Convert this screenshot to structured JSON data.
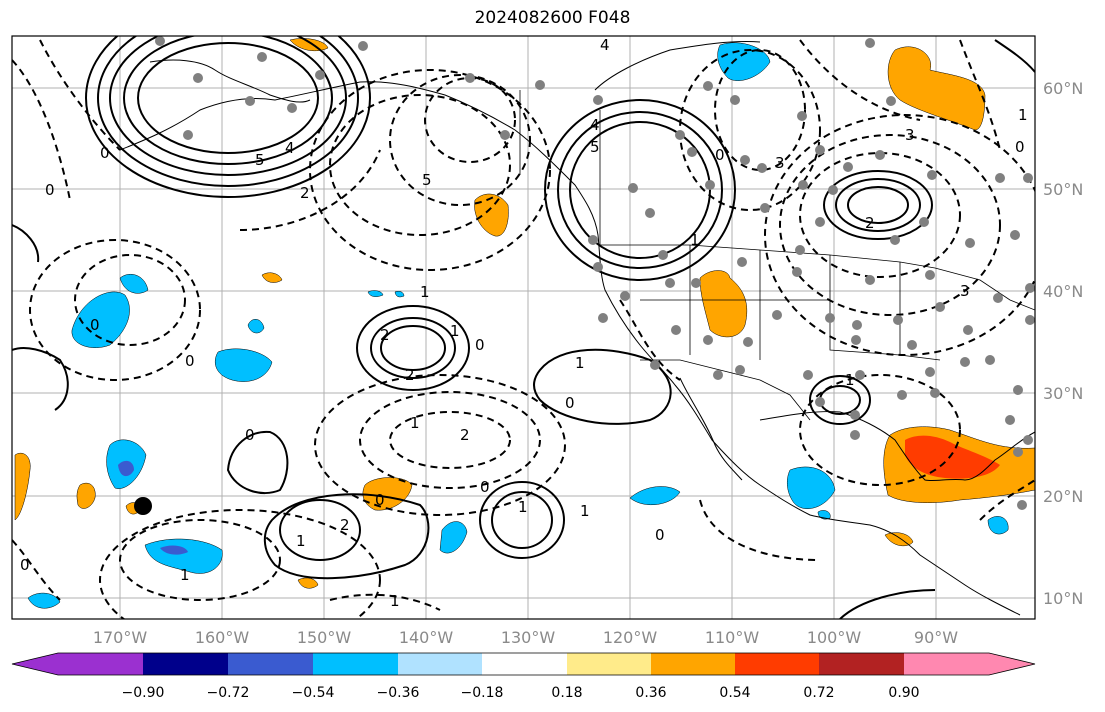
{
  "title": "2024082600 F048",
  "map": {
    "longitude_labels": [
      "170°W",
      "160°W",
      "150°W",
      "140°W",
      "130°W",
      "120°W",
      "110°W",
      "100°W",
      "90°W"
    ],
    "latitude_labels": [
      "60°N",
      "50°N",
      "40°N",
      "30°N",
      "20°N",
      "10°N"
    ]
  },
  "colorbar": {
    "colors": [
      "#9b30d0",
      "#00008b",
      "#3a5bd0",
      "#00bfff",
      "#b0e2ff",
      "#ffffff",
      "#ffeb8a",
      "#ffa500",
      "#ff3c00",
      "#b22222",
      "#ff88b0"
    ],
    "tick_labels": [
      "−0.90",
      "−0.72",
      "−0.54",
      "−0.36",
      "−0.18",
      "0.18",
      "0.36",
      "0.54",
      "0.72",
      "0.90"
    ]
  },
  "contour_labels": [
    "0",
    "0",
    "5",
    "4",
    "2",
    "5",
    "2",
    "1",
    "0",
    "1",
    "2",
    "2",
    "1",
    "1",
    "1",
    "2",
    "0",
    "1",
    "0",
    "1",
    "1",
    "0",
    "0",
    "0",
    "0",
    "1",
    "3",
    "4",
    "5",
    "4",
    "0",
    "2",
    "3",
    "1",
    "0",
    "3",
    "1",
    "0",
    "0",
    "1"
  ]
}
